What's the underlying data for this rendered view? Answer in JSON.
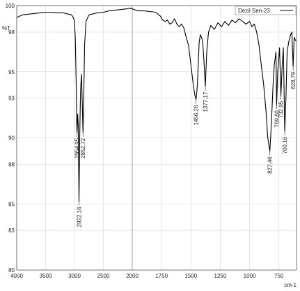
{
  "chart_data": {
    "type": "line",
    "title": "",
    "xlabel": "cm-1",
    "ylabel": "%T",
    "xlim": [
      4000,
      600
    ],
    "ylim": [
      80,
      100
    ],
    "x_ticks": [
      4000,
      3500,
      3000,
      2500,
      2000,
      1750,
      1500,
      1250,
      1000,
      750
    ],
    "y_ticks": [
      80,
      83,
      85,
      88,
      90,
      93,
      95,
      98,
      100
    ],
    "grid": true,
    "legend_position": "top-right",
    "series": [
      {
        "name": "Dezil Sen-23",
        "color": "#000000",
        "points": [
          [
            4000,
            99.1
          ],
          [
            3900,
            99.3
          ],
          [
            3800,
            99.35
          ],
          [
            3700,
            99.4
          ],
          [
            3600,
            99.45
          ],
          [
            3500,
            99.5
          ],
          [
            3400,
            99.5
          ],
          [
            3300,
            99.45
          ],
          [
            3200,
            99.45
          ],
          [
            3100,
            99.35
          ],
          [
            3050,
            99.3
          ],
          [
            3020,
            99.1
          ],
          [
            3000,
            98.8
          ],
          [
            2985,
            97.5
          ],
          [
            2970,
            94.0
          ],
          [
            2960,
            91.0
          ],
          [
            2954.95,
            90.4
          ],
          [
            2945,
            91.8
          ],
          [
            2935,
            91.0
          ],
          [
            2922.16,
            85.2
          ],
          [
            2910,
            90.0
          ],
          [
            2895,
            93.5
          ],
          [
            2880,
            94.8
          ],
          [
            2868,
            93.0
          ],
          [
            2852.72,
            90.4
          ],
          [
            2840,
            93.0
          ],
          [
            2825,
            97.0
          ],
          [
            2800,
            98.8
          ],
          [
            2750,
            99.3
          ],
          [
            2700,
            99.35
          ],
          [
            2600,
            99.45
          ],
          [
            2500,
            99.5
          ],
          [
            2400,
            99.6
          ],
          [
            2300,
            99.65
          ],
          [
            2200,
            99.7
          ],
          [
            2100,
            99.75
          ],
          [
            2050,
            99.8
          ],
          [
            2000,
            99.75
          ],
          [
            1950,
            99.6
          ],
          [
            1900,
            99.6
          ],
          [
            1850,
            99.55
          ],
          [
            1800,
            99.5
          ],
          [
            1760,
            99.2
          ],
          [
            1740,
            98.9
          ],
          [
            1720,
            98.8
          ],
          [
            1700,
            98.9
          ],
          [
            1680,
            98.6
          ],
          [
            1660,
            98.7
          ],
          [
            1640,
            99.0
          ],
          [
            1620,
            98.6
          ],
          [
            1600,
            98.4
          ],
          [
            1580,
            98.6
          ],
          [
            1560,
            98.3
          ],
          [
            1540,
            97.6
          ],
          [
            1520,
            97.0
          ],
          [
            1500,
            95.5
          ],
          [
            1480,
            94.0
          ],
          [
            1466,
            93.2
          ],
          [
            1456.26,
            92.9
          ],
          [
            1445,
            94.0
          ],
          [
            1430,
            97.2
          ],
          [
            1420,
            97.8
          ],
          [
            1410,
            97.6
          ],
          [
            1400,
            97.3
          ],
          [
            1390,
            96.0
          ],
          [
            1377.17,
            93.9
          ],
          [
            1365,
            96.5
          ],
          [
            1350,
            98.0
          ],
          [
            1330,
            98.5
          ],
          [
            1300,
            98.2
          ],
          [
            1270,
            98.7
          ],
          [
            1240,
            98.4
          ],
          [
            1210,
            98.8
          ],
          [
            1180,
            98.5
          ],
          [
            1150,
            98.9
          ],
          [
            1120,
            98.7
          ],
          [
            1090,
            99.0
          ],
          [
            1060,
            98.8
          ],
          [
            1030,
            98.6
          ],
          [
            1000,
            98.8
          ],
          [
            980,
            98.4
          ],
          [
            960,
            98.6
          ],
          [
            940,
            98.0
          ],
          [
            920,
            97.0
          ],
          [
            900,
            95.5
          ],
          [
            880,
            94.0
          ],
          [
            860,
            92.0
          ],
          [
            845,
            90.0
          ],
          [
            827.46,
            89.0
          ],
          [
            815,
            91.0
          ],
          [
            800,
            94.0
          ],
          [
            790,
            95.5
          ],
          [
            775,
            96.5
          ],
          [
            769.6,
            92.5
          ],
          [
            760,
            95.0
          ],
          [
            745,
            96.8
          ],
          [
            732.95,
            93.2
          ],
          [
            722,
            95.5
          ],
          [
            712,
            96.8
          ],
          [
            700.16,
            90.5
          ],
          [
            690,
            93.0
          ],
          [
            680,
            96.5
          ],
          [
            665,
            97.3
          ],
          [
            650,
            97.8
          ],
          [
            640,
            98.0
          ],
          [
            628.79,
            95.4
          ],
          [
            620,
            97.6
          ],
          [
            605,
            97.3
          ]
        ]
      }
    ],
    "annotations": [
      {
        "x": 2954.95,
        "y": 90.4,
        "label": "2954,95"
      },
      {
        "x": 2922.16,
        "y": 85.2,
        "label": "2922,16"
      },
      {
        "x": 2852.72,
        "y": 90.4,
        "label": "2852,72"
      },
      {
        "x": 1456.26,
        "y": 92.9,
        "label": "1456,26"
      },
      {
        "x": 1377.17,
        "y": 93.9,
        "label": "1377,17"
      },
      {
        "x": 827.46,
        "y": 89.0,
        "label": "827,46"
      },
      {
        "x": 769.6,
        "y": 92.5,
        "label": "769,60"
      },
      {
        "x": 732.95,
        "y": 93.2,
        "label": "732,95"
      },
      {
        "x": 700.16,
        "y": 90.5,
        "label": "700,16"
      },
      {
        "x": 628.79,
        "y": 95.4,
        "label": "628,79"
      }
    ]
  }
}
